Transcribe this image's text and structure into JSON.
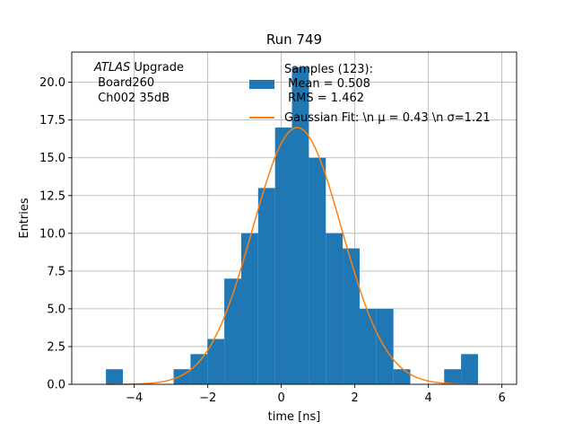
{
  "chart_data": {
    "type": "bar",
    "title": "Run 749",
    "xlabel": "time [ns]",
    "ylabel": "Entries",
    "xlim": [
      -5.7,
      6.4
    ],
    "ylim": [
      0,
      22
    ],
    "grid": true,
    "x_ticks": [
      -4,
      -2,
      0,
      2,
      4,
      6
    ],
    "x_tick_labels": [
      "−4",
      "−2",
      "0",
      "2",
      "4",
      "6"
    ],
    "y_ticks": [
      0,
      2.5,
      5,
      7.5,
      10,
      12.5,
      15,
      17.5,
      20
    ],
    "y_tick_labels": [
      "0.0",
      "2.5",
      "5.0",
      "7.5",
      "10.0",
      "12.5",
      "15.0",
      "17.5",
      "20.0"
    ],
    "bin_width": 0.46,
    "bin_edges_start": [
      -4.77,
      -2.93,
      -2.47,
      -2.01,
      -1.55,
      -1.09,
      -0.63,
      -0.17,
      0.29,
      0.75,
      1.21,
      1.67,
      2.13,
      2.59,
      3.05,
      4.43,
      4.89
    ],
    "counts": [
      1,
      1,
      2,
      3,
      7,
      10,
      13,
      17,
      21,
      15,
      10,
      9,
      5,
      5,
      1,
      1,
      2
    ],
    "hist_color": "#1f77b4",
    "fit_color": "#ff7f0e",
    "fit": {
      "amplitude": 17.0,
      "mu": 0.43,
      "sigma": 1.21,
      "x_range": [
        -4.77,
        5.35
      ]
    },
    "legend": {
      "placement": "upper-center",
      "entries": [
        {
          "kind": "patch",
          "lines": [
            "Samples (123):",
            " Mean = 0.508",
            " RMS = 1.462"
          ]
        },
        {
          "kind": "line",
          "lines": [
            "Gaussian Fit: \\n μ = 0.43 \\n σ=1.21"
          ]
        }
      ]
    },
    "annotation": {
      "italic_part": "ATLAS",
      "rest_first_line": " Upgrade",
      "lines": [
        " Board260",
        " Ch002 35dB"
      ]
    }
  }
}
